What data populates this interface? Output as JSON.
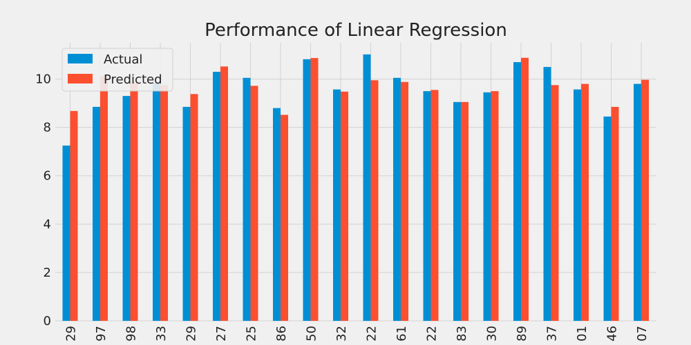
{
  "chart_data": {
    "type": "bar",
    "title": "Performance of Linear Regression",
    "xlabel": "",
    "ylabel": "",
    "ylim": [
      0,
      11.5
    ],
    "yticks": [
      0,
      2,
      4,
      6,
      8,
      10
    ],
    "grid": true,
    "legend_position": "top-left",
    "categories": [
      "29",
      "97",
      "98",
      "33",
      "29",
      "27",
      "25",
      "86",
      "50",
      "32",
      "22",
      "61",
      "22",
      "83",
      "30",
      "89",
      "37",
      "01",
      "46",
      "07"
    ],
    "series": [
      {
        "name": "Actual",
        "color": "#008fd5",
        "values": [
          7.25,
          8.85,
          9.3,
          9.85,
          8.85,
          10.3,
          10.05,
          8.8,
          10.82,
          9.57,
          11.02,
          10.05,
          9.5,
          9.05,
          9.45,
          10.7,
          10.5,
          9.57,
          8.45,
          9.8
        ]
      },
      {
        "name": "Predicted",
        "color": "#fc4f30",
        "values": [
          8.68,
          10.12,
          9.85,
          9.75,
          9.38,
          10.52,
          9.72,
          8.52,
          10.87,
          9.48,
          9.95,
          9.88,
          9.55,
          9.05,
          9.5,
          10.88,
          9.75,
          9.8,
          8.85,
          9.97
        ]
      }
    ]
  }
}
